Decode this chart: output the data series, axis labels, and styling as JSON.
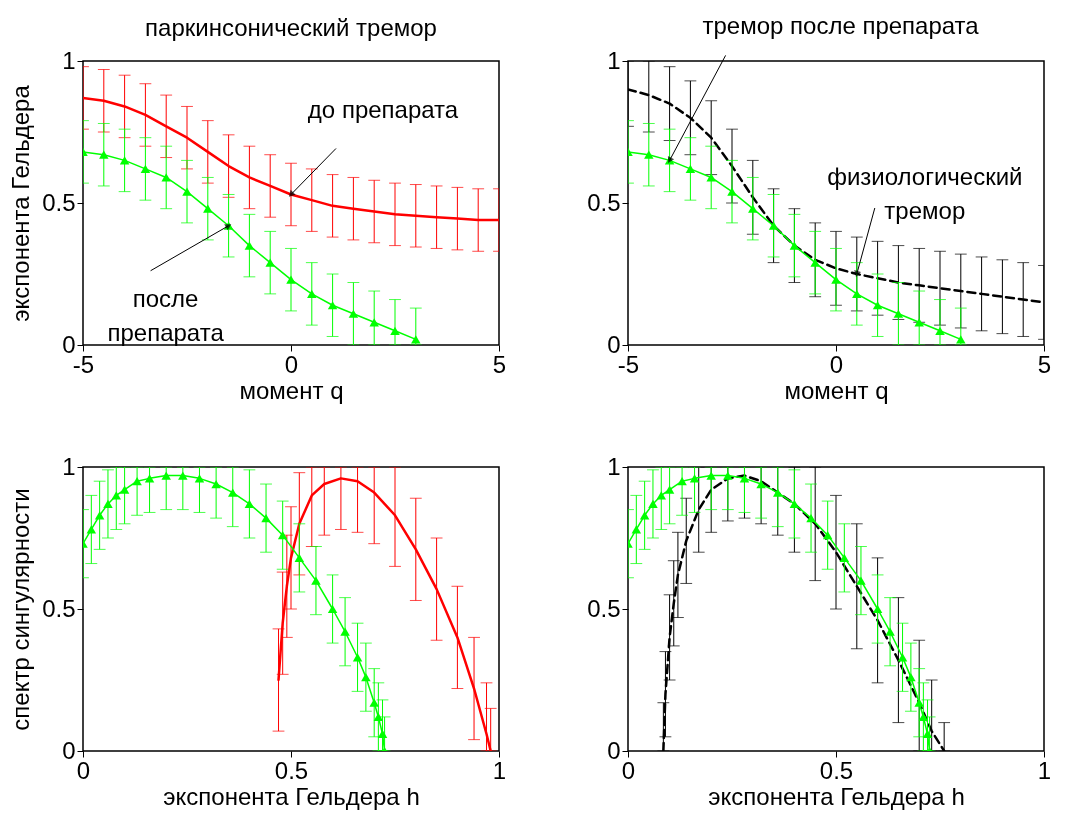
{
  "chart_data": [
    {
      "type": "line",
      "title": "паркинсонический тремор",
      "xlabel": "момент q",
      "ylabel": "экспонента Гельдера",
      "xlim": [
        -5,
        5
      ],
      "ylim": [
        0,
        1
      ],
      "xticks": [
        -5,
        0,
        5
      ],
      "yticks": [
        0,
        0.5,
        1
      ],
      "x": [
        -5,
        -4.5,
        -4,
        -3.5,
        -3,
        -2.5,
        -2,
        -1.5,
        -1,
        -0.5,
        0,
        0.5,
        1,
        1.5,
        2,
        2.5,
        3,
        3.5,
        4,
        4.5,
        5
      ],
      "series": [
        {
          "color": "#ff0000",
          "line_style": "solid",
          "marker": "none",
          "values": [
            0.87,
            0.86,
            0.84,
            0.81,
            0.77,
            0.73,
            0.68,
            0.63,
            0.59,
            0.56,
            0.53,
            0.51,
            0.49,
            0.48,
            0.47,
            0.46,
            0.455,
            0.45,
            0.445,
            0.44,
            0.44
          ],
          "errors": [
            0.11,
            0.11,
            0.11,
            0.11,
            0.11,
            0.11,
            0.11,
            0.11,
            0.11,
            0.11,
            0.11,
            0.11,
            0.11,
            0.11,
            0.11,
            0.11,
            0.11,
            0.11,
            0.11,
            0.11,
            0.11
          ]
        },
        {
          "color": "#00ff00",
          "line_style": "solid",
          "marker": "triangle",
          "values": [
            0.68,
            0.67,
            0.65,
            0.62,
            0.59,
            0.54,
            0.48,
            0.42,
            0.35,
            0.29,
            0.23,
            0.18,
            0.14,
            0.11,
            0.08,
            0.05,
            0.02,
            null,
            null,
            null,
            null
          ],
          "errors": [
            0.11,
            0.11,
            0.11,
            0.11,
            0.11,
            0.11,
            0.11,
            0.11,
            0.11,
            0.11,
            0.11,
            0.11,
            0.11,
            0.11,
            [
              0,
              0.19
            ],
            [
              0,
              0.16
            ],
            [
              0,
              0.13
            ],
            null,
            null,
            null,
            null
          ]
        }
      ],
      "annotations": [
        {
          "text": "до препарата",
          "x": 0,
          "y": 0.53
        },
        {
          "text": "после препарата",
          "x": -1.5,
          "y": 0.42
        }
      ]
    },
    {
      "type": "line",
      "xlabel": "момент q",
      "xlim": [
        -5,
        5
      ],
      "ylim": [
        0,
        1
      ],
      "xticks": [
        -5,
        0,
        5
      ],
      "yticks": [
        0,
        0.5,
        1
      ],
      "x": [
        -5,
        -4.5,
        -4,
        -3.5,
        -3,
        -2.5,
        -2,
        -1.5,
        -1,
        -0.5,
        0,
        0.5,
        1,
        1.5,
        2,
        2.5,
        3,
        3.5,
        4,
        4.5,
        5
      ],
      "series": [
        {
          "color": "#000000",
          "line_style": "dashed",
          "marker": "none",
          "values": [
            0.9,
            0.88,
            0.85,
            0.8,
            0.73,
            0.63,
            0.52,
            0.42,
            0.35,
            0.3,
            0.27,
            0.25,
            0.235,
            0.22,
            0.21,
            0.2,
            0.19,
            0.18,
            0.17,
            0.16,
            0.15
          ],
          "errors": [
            [
              0.77,
              1
            ],
            [
              0.75,
              1
            ],
            0.13,
            0.13,
            0.13,
            0.13,
            0.13,
            0.13,
            0.13,
            0.13,
            0.13,
            0.13,
            0.13,
            0.13,
            0.13,
            0.13,
            0.13,
            0.13,
            0.13,
            0.13,
            0.13
          ]
        },
        {
          "color": "#00ff00",
          "line_style": "solid",
          "marker": "triangle",
          "values": [
            0.68,
            0.67,
            0.65,
            0.62,
            0.59,
            0.54,
            0.48,
            0.42,
            0.35,
            0.29,
            0.23,
            0.18,
            0.14,
            0.11,
            0.08,
            0.05,
            0.02,
            null,
            null,
            null,
            null
          ],
          "errors": [
            0.11,
            0.11,
            0.11,
            0.11,
            0.11,
            0.11,
            0.11,
            0.11,
            0.11,
            0.11,
            0.11,
            0.11,
            0.11,
            0.11,
            [
              0,
              0.19
            ],
            [
              0,
              0.16
            ],
            [
              0,
              0.13
            ],
            null,
            null,
            null,
            null
          ]
        }
      ],
      "annotations": [
        {
          "text": "тремор после препарата",
          "x": -4,
          "y": 0.65
        },
        {
          "text": "физиологический тремор",
          "x": 0.5,
          "y": 0.25
        }
      ]
    },
    {
      "type": "line",
      "xlabel": "экспонента Гельдера h",
      "ylabel": "спектр сингулярности",
      "xlim": [
        0,
        1
      ],
      "ylim": [
        0,
        1
      ],
      "xticks": [
        0,
        0.5,
        1
      ],
      "yticks": [
        0,
        0.5,
        1
      ],
      "series": [
        {
          "color": "#ff0000",
          "line_style": "solid",
          "marker": "none",
          "x": [
            0.47,
            0.48,
            0.49,
            0.5,
            0.52,
            0.55,
            0.58,
            0.62,
            0.66,
            0.7,
            0.75,
            0.8,
            0.85,
            0.9,
            0.94,
            0.97,
            0.98
          ],
          "values": [
            0.25,
            0.45,
            0.58,
            0.68,
            0.8,
            0.9,
            0.94,
            0.96,
            0.95,
            0.91,
            0.83,
            0.71,
            0.57,
            0.4,
            0.22,
            0.06,
            0
          ],
          "errors": [
            [
              0.07,
              0.43
            ],
            [
              0.27,
              0.63
            ],
            [
              0.4,
              0.76
            ],
            [
              0.5,
              0.86
            ],
            [
              0.62,
              0.98
            ],
            [
              0.72,
              1
            ],
            [
              0.76,
              1
            ],
            [
              0.78,
              1
            ],
            [
              0.77,
              1
            ],
            [
              0.73,
              1
            ],
            [
              0.65,
              1
            ],
            [
              0.53,
              0.89
            ],
            [
              0.39,
              0.75
            ],
            [
              0.22,
              0.58
            ],
            [
              0.04,
              0.4
            ],
            [
              0,
              0.24
            ],
            [
              0,
              0.15
            ]
          ]
        },
        {
          "color": "#00ff00",
          "line_style": "solid",
          "marker": "triangle",
          "x": [
            0,
            0.02,
            0.04,
            0.06,
            0.08,
            0.1,
            0.13,
            0.16,
            0.2,
            0.24,
            0.28,
            0.32,
            0.36,
            0.4,
            0.44,
            0.48,
            0.52,
            0.56,
            0.6,
            0.63,
            0.66,
            0.68,
            0.7,
            0.71,
            0.72,
            0.725
          ],
          "values": [
            0.73,
            0.78,
            0.83,
            0.87,
            0.9,
            0.92,
            0.95,
            0.96,
            0.97,
            0.97,
            0.96,
            0.94,
            0.91,
            0.87,
            0.82,
            0.76,
            0.68,
            0.6,
            0.5,
            0.42,
            0.33,
            0.26,
            0.17,
            0.12,
            0.06,
            0
          ],
          "errors": [
            [
              0.61,
              0.85
            ],
            [
              0.66,
              0.9
            ],
            [
              0.71,
              0.95
            ],
            [
              0.75,
              0.99
            ],
            [
              0.78,
              1
            ],
            [
              0.8,
              1
            ],
            [
              0.83,
              1
            ],
            [
              0.84,
              1
            ],
            [
              0.85,
              1
            ],
            [
              0.85,
              1
            ],
            [
              0.84,
              1
            ],
            [
              0.82,
              1
            ],
            [
              0.79,
              1
            ],
            [
              0.75,
              0.99
            ],
            [
              0.7,
              0.94
            ],
            [
              0.64,
              0.88
            ],
            [
              0.56,
              0.8
            ],
            [
              0.48,
              0.72
            ],
            [
              0.38,
              0.62
            ],
            [
              0.3,
              0.54
            ],
            [
              0.21,
              0.45
            ],
            [
              0.14,
              0.38
            ],
            [
              0.05,
              0.29
            ],
            [
              0,
              0.24
            ],
            [
              0,
              0.18
            ],
            [
              0,
              0.12
            ]
          ]
        }
      ]
    },
    {
      "type": "line",
      "xlabel": "экспонента Гельдера h",
      "xlim": [
        0,
        1
      ],
      "ylim": [
        0,
        1
      ],
      "xticks": [
        0,
        0.5,
        1
      ],
      "yticks": [
        0,
        0.5,
        1
      ],
      "series": [
        {
          "color": "#000000",
          "line_style": "dashed",
          "marker": "none",
          "x": [
            0.085,
            0.09,
            0.1,
            0.11,
            0.12,
            0.14,
            0.17,
            0.2,
            0.24,
            0.28,
            0.32,
            0.36,
            0.4,
            0.45,
            0.5,
            0.55,
            0.6,
            0.65,
            0.7,
            0.73,
            0.76
          ],
          "values": [
            0,
            0.2,
            0.4,
            0.52,
            0.62,
            0.74,
            0.85,
            0.92,
            0.96,
            0.97,
            0.95,
            0.91,
            0.87,
            0.8,
            0.7,
            0.58,
            0.46,
            0.32,
            0.17,
            0.07,
            0
          ],
          "errors": [
            [
              0,
              0.17
            ],
            [
              0.05,
              0.35
            ],
            [
              0.25,
              0.55
            ],
            [
              0.37,
              0.67
            ],
            [
              0.47,
              0.77
            ],
            [
              0.59,
              0.89
            ],
            [
              0.7,
              1
            ],
            [
              0.77,
              1
            ],
            [
              0.81,
              1
            ],
            [
              0.82,
              1
            ],
            [
              0.8,
              1
            ],
            [
              0.76,
              1
            ],
            [
              0.7,
              1
            ],
            [
              0.6,
              1
            ],
            [
              0.5,
              0.9
            ],
            [
              0.36,
              0.8
            ],
            [
              0.24,
              0.68
            ],
            [
              0.1,
              0.54
            ],
            [
              0,
              0.39
            ],
            [
              0,
              0.25
            ],
            [
              0,
              0.1
            ]
          ]
        },
        {
          "color": "#00ff00",
          "line_style": "solid",
          "marker": "triangle",
          "x": [
            0,
            0.02,
            0.04,
            0.06,
            0.08,
            0.1,
            0.13,
            0.16,
            0.2,
            0.24,
            0.28,
            0.32,
            0.36,
            0.4,
            0.44,
            0.48,
            0.52,
            0.56,
            0.6,
            0.63,
            0.66,
            0.68,
            0.7,
            0.71,
            0.72,
            0.725
          ],
          "values": [
            0.73,
            0.78,
            0.83,
            0.87,
            0.9,
            0.92,
            0.95,
            0.96,
            0.97,
            0.97,
            0.96,
            0.94,
            0.91,
            0.87,
            0.82,
            0.76,
            0.68,
            0.6,
            0.5,
            0.42,
            0.33,
            0.26,
            0.17,
            0.12,
            0.06,
            0
          ],
          "errors": [
            [
              0.61,
              0.85
            ],
            [
              0.66,
              0.9
            ],
            [
              0.71,
              0.95
            ],
            [
              0.75,
              0.99
            ],
            [
              0.78,
              1
            ],
            [
              0.8,
              1
            ],
            [
              0.83,
              1
            ],
            [
              0.84,
              1
            ],
            [
              0.85,
              1
            ],
            [
              0.85,
              1
            ],
            [
              0.84,
              1
            ],
            [
              0.82,
              1
            ],
            [
              0.79,
              1
            ],
            [
              0.75,
              0.99
            ],
            [
              0.7,
              0.94
            ],
            [
              0.64,
              0.88
            ],
            [
              0.56,
              0.8
            ],
            [
              0.48,
              0.72
            ],
            [
              0.38,
              0.62
            ],
            [
              0.3,
              0.54
            ],
            [
              0.21,
              0.45
            ],
            [
              0.14,
              0.38
            ],
            [
              0.05,
              0.29
            ],
            [
              0,
              0.24
            ],
            [
              0,
              0.18
            ],
            [
              0,
              0.12
            ]
          ]
        }
      ]
    }
  ]
}
